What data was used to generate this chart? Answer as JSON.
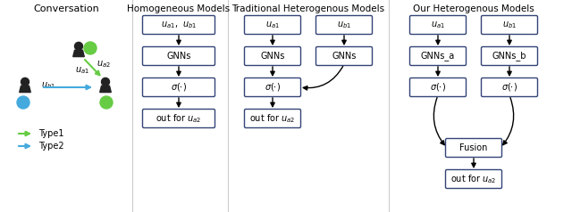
{
  "title_conversation": "Conversation",
  "title_homo": "Homogeneous Models",
  "title_trad": "Traditional Heterogenous Models",
  "title_our": "Our Heterogenous Models",
  "legend_type1": "Type1",
  "legend_type2": "Type2",
  "color_type1": "#66cc44",
  "color_type2": "#44aadd",
  "box_facecolor": "white",
  "box_edgecolor": "#334477",
  "box_edge_width": 1.0,
  "text_color": "black",
  "bg_color": "white",
  "figw": 6.4,
  "figh": 2.38,
  "dpi": 100
}
